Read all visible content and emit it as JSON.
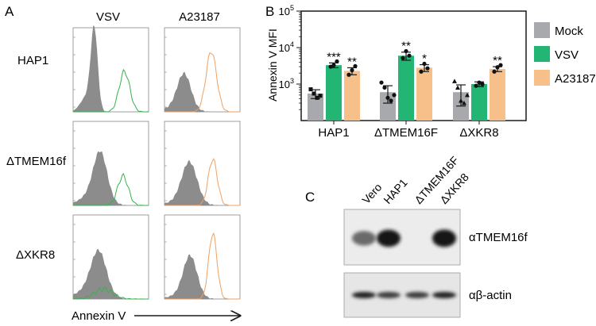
{
  "panel_a": {
    "letter": "A",
    "columns": [
      "VSV",
      "A23187"
    ],
    "rows": [
      {
        "label": "HAP1"
      },
      {
        "label": "ΔTMEM16f"
      },
      {
        "label": "ΔXKR8"
      }
    ],
    "x_axis_label": "Annexin V",
    "colors": {
      "control_fill": "#8c8c8c",
      "vsv_line": "#35b34a",
      "a23187_line": "#f0a060"
    }
  },
  "panel_b": {
    "letter": "B",
    "legend": [
      {
        "label": "Mock",
        "color": "#a7a9ac"
      },
      {
        "label": "VSV",
        "color": "#22b573"
      },
      {
        "label": "A23187",
        "color": "#f7c08a"
      }
    ]
  },
  "chart_data": {
    "type": "bar",
    "ylabel": "Annexin V MFI",
    "yscale": "log",
    "ylim": [
      100,
      100000
    ],
    "y_ticks": [
      {
        "base": "10",
        "exp": "3",
        "value": 1000
      },
      {
        "base": "10",
        "exp": "4",
        "value": 10000
      },
      {
        "base": "10",
        "exp": "5",
        "value": 100000
      }
    ],
    "categories": [
      "HAP1",
      "ΔTMEM16F",
      "ΔXKR8"
    ],
    "series": [
      {
        "name": "Mock",
        "color": "#a7a9ac",
        "values": [
          550,
          600,
          600
        ],
        "sem": [
          150,
          300,
          350
        ],
        "points": [
          [
            720,
            550,
            420,
            480
          ],
          [
            1100,
            800,
            420,
            350,
            500
          ],
          [
            1200,
            800,
            350,
            300,
            500
          ]
        ],
        "marker": [
          "square",
          "circle",
          "triangle"
        ],
        "significance": [
          "",
          "",
          ""
        ]
      },
      {
        "name": "VSV",
        "color": "#22b573",
        "values": [
          3300,
          6000,
          1000
        ],
        "sem": [
          500,
          1500,
          150
        ],
        "points": [
          [
            3000,
            3300,
            4200
          ],
          [
            5200,
            8000,
            6000
          ],
          [
            900,
            1100,
            1000
          ]
        ],
        "marker": [
          "circle",
          "circle",
          "circle"
        ],
        "significance": [
          "***",
          "**",
          ""
        ]
      },
      {
        "name": "A23187",
        "color": "#f7c08a",
        "values": [
          2300,
          2800,
          2600
        ],
        "sem": [
          500,
          600,
          400
        ],
        "points": [
          [
            1800,
            2400,
            3100
          ],
          [
            2200,
            3600,
            2700
          ],
          [
            2200,
            2900,
            3300
          ]
        ],
        "marker": [
          "circle",
          "circle",
          "circle"
        ],
        "significance": [
          "**",
          "*",
          "**"
        ]
      }
    ]
  },
  "panel_c": {
    "letter": "C",
    "lanes": [
      "Vero",
      "HAP1",
      "ΔTMEM16F",
      "ΔXKR8"
    ],
    "blots": [
      {
        "label": "αTMEM16f",
        "intensity": [
          0.55,
          0.95,
          0,
          0.98
        ]
      },
      {
        "label": "αβ-actin",
        "intensity": [
          0.9,
          0.78,
          0.78,
          0.9
        ]
      }
    ]
  }
}
